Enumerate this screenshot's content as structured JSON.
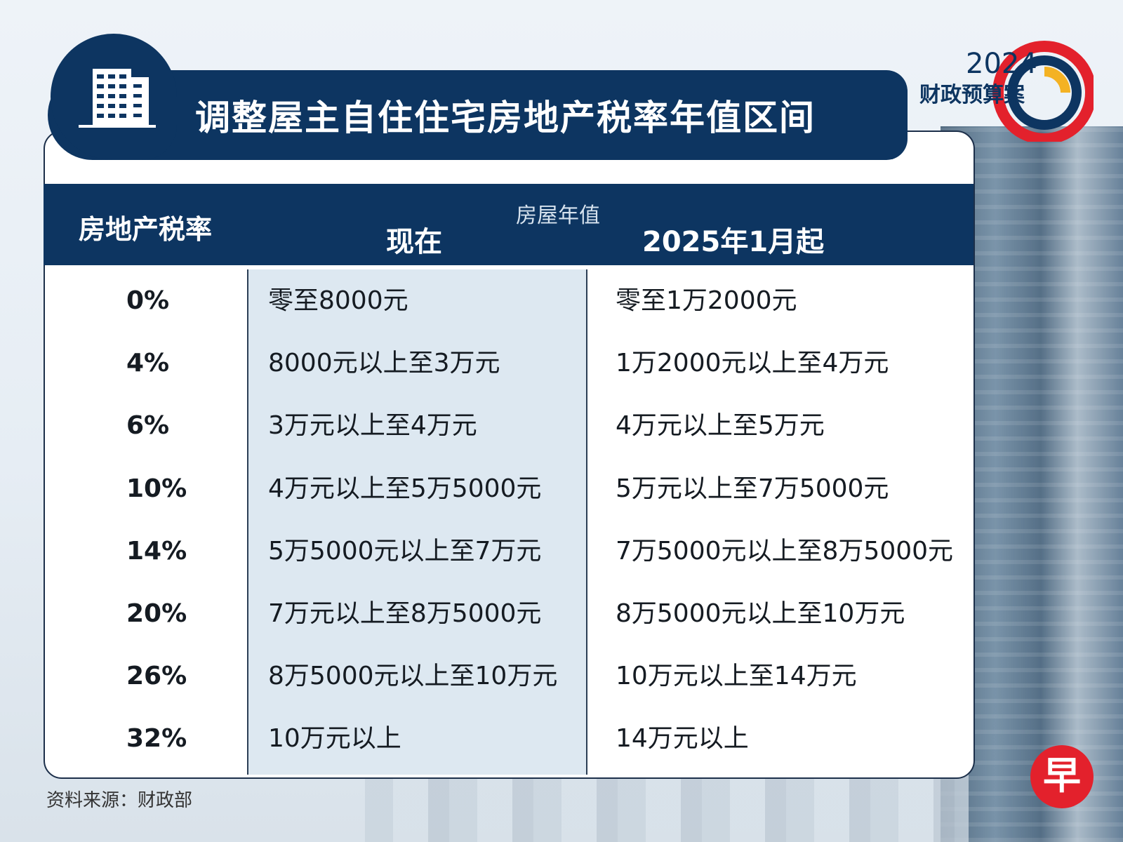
{
  "title": "调整屋主自住住宅房地产税率年值区间",
  "logo": {
    "year": "2024",
    "text": "财政预算案"
  },
  "table": {
    "header": {
      "rate": "房地产税率",
      "group": "房屋年值",
      "now": "现在",
      "new": "2025年1月起"
    },
    "rows": [
      {
        "rate": "0%",
        "now": "零至8000元",
        "new": "零至1万2000元"
      },
      {
        "rate": "4%",
        "now": "8000元以上至3万元",
        "new": "1万2000元以上至4万元"
      },
      {
        "rate": "6%",
        "now": "3万元以上至4万元",
        "new": "4万元以上至5万元"
      },
      {
        "rate": "10%",
        "now": "4万元以上至5万5000元",
        "new": "5万元以上至7万5000元"
      },
      {
        "rate": "14%",
        "now": "5万5000元以上至7万元",
        "new": "7万5000元以上至8万5000元"
      },
      {
        "rate": "20%",
        "now": "7万元以上至8万5000元",
        "new": "8万5000元以上至10万元"
      },
      {
        "rate": "26%",
        "now": "8万5000元以上至10万元",
        "new": "10万元以上至14万元"
      },
      {
        "rate": "32%",
        "now": "10万元以上",
        "new": "14万元以上"
      }
    ]
  },
  "source": "资料来源：财政部",
  "brand_mark": "早",
  "icons": {
    "header_icon": "building-icon",
    "logo_ring": "budget-ring-icon"
  },
  "colors": {
    "navy": "#0d3561",
    "light_col": "#dde8f1",
    "red": "#e3212c",
    "gold": "#f4b223"
  }
}
